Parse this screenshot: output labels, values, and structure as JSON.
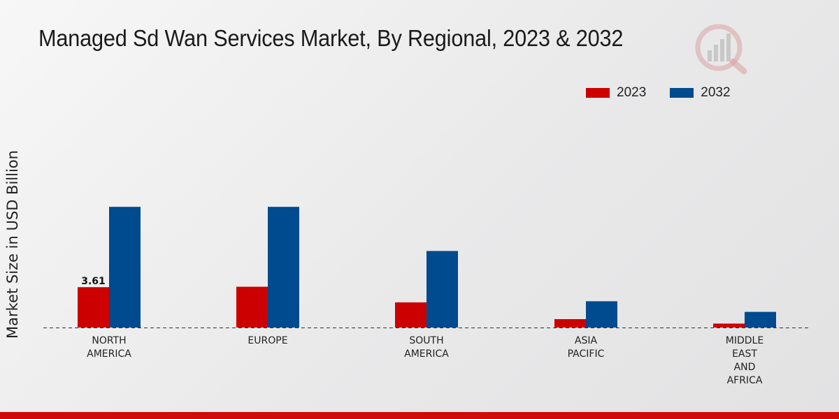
{
  "chart_data": {
    "type": "bar",
    "title": "Managed Sd Wan Services Market, By Regional, 2023 & 2032",
    "xlabel": "",
    "ylabel": "Market Size in USD Billion",
    "categories": [
      [
        "NORTH",
        "AMERICA"
      ],
      [
        "EUROPE"
      ],
      [
        "SOUTH",
        "AMERICA"
      ],
      [
        "ASIA",
        "PACIFIC"
      ],
      [
        "MIDDLE",
        "EAST",
        "AND",
        "AFRICA"
      ]
    ],
    "series": [
      {
        "name": "2023",
        "color": "#cc0000",
        "values": [
          3.61,
          3.65,
          2.25,
          0.75,
          0.35
        ]
      },
      {
        "name": "2032",
        "color": "#004a8f",
        "values": [
          10.8,
          10.8,
          6.85,
          2.35,
          1.4
        ]
      }
    ],
    "data_labels": [
      {
        "series": 0,
        "index": 0,
        "text": "3.61"
      }
    ],
    "ylim": [
      0,
      12
    ],
    "legend_position": "top-right",
    "grid": false
  },
  "legend": {
    "items": [
      "2023",
      "2032"
    ]
  }
}
